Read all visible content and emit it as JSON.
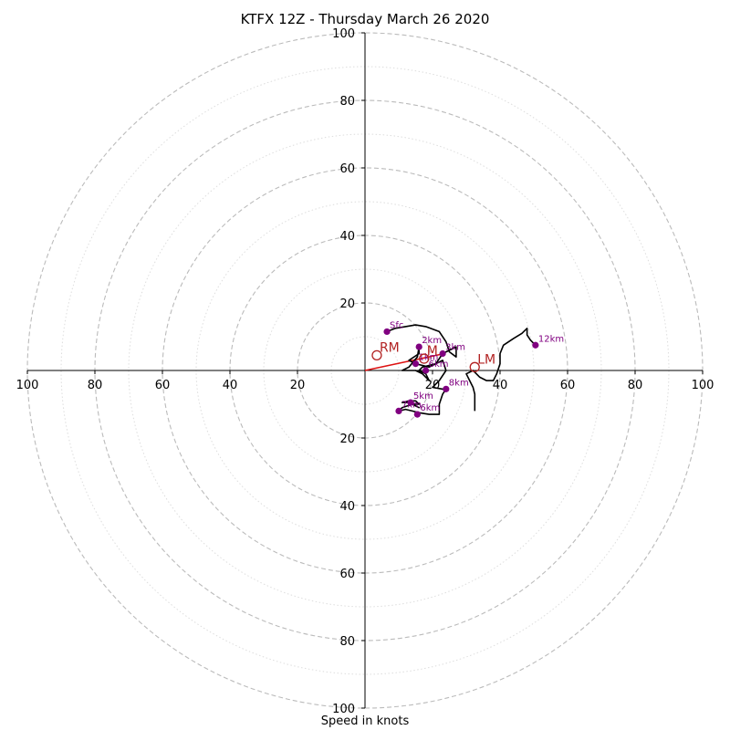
{
  "chart_data": {
    "type": "hodograph",
    "title": "KTFX 12Z - Thursday March 26 2020",
    "xlabel": "Speed in knots",
    "units": "knots",
    "range": [
      -100,
      100
    ],
    "rings_major": [
      20,
      40,
      60,
      80,
      100
    ],
    "rings_minor": [
      10,
      30,
      50,
      70,
      90
    ],
    "axis_tick_values": [
      20,
      40,
      60,
      80,
      100
    ],
    "tick_labels": [
      "20",
      "40",
      "60",
      "80",
      "100"
    ],
    "grid": true,
    "colors": {
      "trace": "#000000",
      "height_marker": "#800080",
      "motion": "#b22222",
      "shear_vector": "#dd1111",
      "ring": "#bbbbbb",
      "minor_ring": "#dddddd"
    },
    "trace": [
      [
        6.5,
        11.5
      ],
      [
        9,
        12.5
      ],
      [
        12,
        13
      ],
      [
        15,
        13.5
      ],
      [
        18,
        13
      ],
      [
        22,
        11.5
      ],
      [
        24,
        8.5
      ],
      [
        25,
        5.5
      ],
      [
        27,
        4
      ],
      [
        27,
        7
      ],
      [
        23,
        5
      ],
      [
        21,
        2
      ],
      [
        19,
        1
      ],
      [
        15,
        2
      ],
      [
        13,
        3
      ],
      [
        16,
        5
      ],
      [
        16,
        7
      ],
      [
        15.5,
        4
      ],
      [
        13,
        1
      ],
      [
        11,
        0
      ],
      [
        15,
        0
      ],
      [
        17,
        -1
      ],
      [
        19,
        -3
      ],
      [
        18,
        -1
      ],
      [
        16,
        0
      ],
      [
        17,
        1
      ],
      [
        21,
        2
      ],
      [
        23,
        3
      ],
      [
        24,
        0
      ],
      [
        22,
        -3
      ],
      [
        20,
        -5
      ],
      [
        23,
        -5.5
      ],
      [
        24,
        -5.5
      ],
      [
        23,
        -7
      ],
      [
        22,
        -10
      ],
      [
        22,
        -13
      ],
      [
        21,
        -13
      ],
      [
        19,
        -13
      ],
      [
        16,
        -12.5
      ],
      [
        14,
        -12
      ],
      [
        12,
        -11.5
      ],
      [
        10,
        -12
      ],
      [
        11,
        -11
      ],
      [
        14,
        -10
      ],
      [
        16,
        -11
      ],
      [
        13,
        -9.5
      ],
      [
        11,
        -9.5
      ],
      [
        13,
        -9
      ],
      [
        15,
        -9
      ],
      [
        16,
        -10
      ],
      [
        14,
        -10
      ],
      [
        13,
        -9.5
      ]
    ],
    "trace_upper": [
      [
        32.5,
        -12
      ],
      [
        32.5,
        -7
      ],
      [
        32,
        -5
      ],
      [
        31,
        -3
      ],
      [
        30,
        -1
      ],
      [
        32,
        0
      ],
      [
        33,
        -1
      ],
      [
        34,
        -2
      ],
      [
        36,
        -3
      ],
      [
        38,
        -3
      ],
      [
        39,
        -1
      ],
      [
        40,
        2
      ],
      [
        40,
        5
      ],
      [
        41,
        7.5
      ],
      [
        44,
        9.5
      ],
      [
        46.5,
        11
      ],
      [
        48,
        12.5
      ],
      [
        48,
        10.5
      ],
      [
        49,
        9
      ],
      [
        50,
        8
      ]
    ],
    "height_points": [
      {
        "label": "Sfc",
        "u": 6.5,
        "v": 11.5
      },
      {
        "label": "2km",
        "u": 16,
        "v": 7
      },
      {
        "label": "3km",
        "u": 23,
        "v": 5
      },
      {
        "label": "1km",
        "u": 15,
        "v": 2
      },
      {
        "label": "6km",
        "u": 18,
        "v": 0
      },
      {
        "label": "8km",
        "u": 24,
        "v": -5.5
      },
      {
        "label": "5km",
        "u": 13.5,
        "v": -9.5
      },
      {
        "label": "7km",
        "u": 10,
        "v": -12
      },
      {
        "label": "6km",
        "u": 15.5,
        "v": -13
      },
      {
        "label": "12km",
        "u": 50.5,
        "v": 7.5
      }
    ],
    "storm_motion": [
      {
        "label": "RM",
        "u": 3.5,
        "v": 4.5
      },
      {
        "label": "M",
        "u": 17.5,
        "v": 3.5
      },
      {
        "label": "LM",
        "u": 32.5,
        "v": 1
      }
    ],
    "shear_vector": {
      "u0": 0,
      "v0": 0,
      "u1": 23.5,
      "v1": 5
    }
  }
}
